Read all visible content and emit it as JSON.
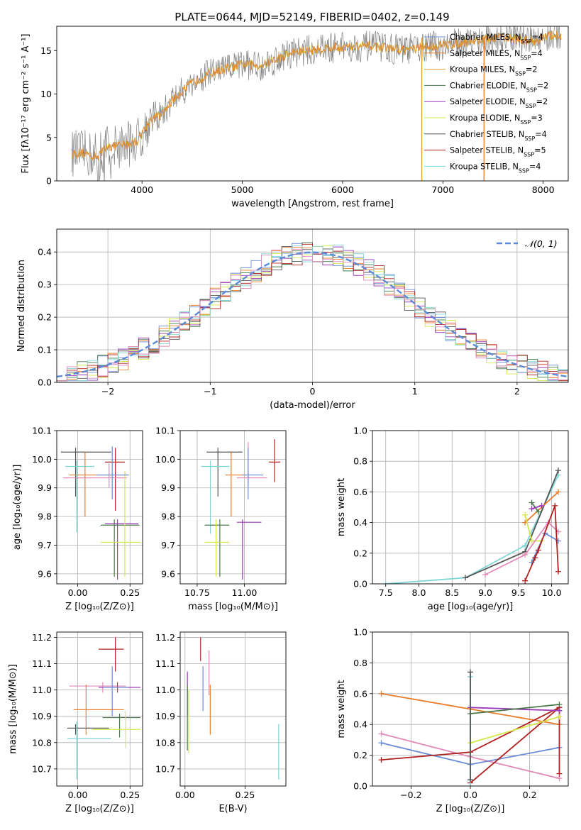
{
  "title": "PLATE=0644, MJD=52149, FIBERID=0402, z=0.149",
  "colors": {
    "Chabrier MILES": "#6a8bd6",
    "Salpeter MILES": "#e87c2a",
    "Kroupa MILES": "#e0a030",
    "Chabrier ELODIE": "#4a7a4a",
    "Salpeter ELODIE": "#9a3ab8",
    "Kroupa ELODIE": "#d4e84a",
    "Chabrier STELIB": "#555555",
    "Salpeter STELIB": "#b0201e",
    "Kroupa STELIB": "#7fd6d6",
    "Pink": "#e08ab8",
    "data": "#808080",
    "normal": "#5b8bd6"
  },
  "chart_data": [
    {
      "type": "line",
      "id": "spectrum",
      "xlabel": "wavelength [Angstrom, rest frame]",
      "ylabel": "Flux [fλ10⁻¹⁷ erg cm⁻² s⁻¹ A⁻¹]",
      "xlim": [
        3150,
        8250
      ],
      "ylim": [
        0,
        17.8
      ],
      "xticks": [
        4000,
        5000,
        6000,
        7000,
        8000
      ],
      "yticks": [
        0,
        5,
        10,
        15
      ],
      "continuum": [
        [
          3300,
          3.2
        ],
        [
          3450,
          3.1
        ],
        [
          3550,
          2.8
        ],
        [
          3650,
          3.9
        ],
        [
          3800,
          4.1
        ],
        [
          3950,
          4.6
        ],
        [
          4100,
          7.3
        ],
        [
          4200,
          7.6
        ],
        [
          4300,
          9.3
        ],
        [
          4500,
          11.3
        ],
        [
          4700,
          12.5
        ],
        [
          5000,
          13.4
        ],
        [
          5200,
          13.3
        ],
        [
          5500,
          14.8
        ],
        [
          5800,
          15.2
        ],
        [
          6000,
          15.4
        ],
        [
          6300,
          15.5
        ],
        [
          6600,
          15.1
        ],
        [
          7000,
          15.6
        ],
        [
          7300,
          16.1
        ],
        [
          7600,
          16.5
        ],
        [
          7900,
          16.1
        ],
        [
          8100,
          16.8
        ]
      ],
      "vertical_cuts": [
        6790,
        7410
      ],
      "legend": [
        {
          "label": "Chabrier MILES, N",
          "sub": "SSP",
          "tail": "=4"
        },
        {
          "label": "Salpeter MILES, N",
          "sub": "SSP",
          "tail": "=4"
        },
        {
          "label": "Kroupa MILES, N",
          "sub": "SSP",
          "tail": "=2"
        },
        {
          "label": "Chabrier ELODIE, N",
          "sub": "SSP",
          "tail": "=2"
        },
        {
          "label": "Salpeter ELODIE, N",
          "sub": "SSP",
          "tail": "=2"
        },
        {
          "label": "Kroupa ELODIE, N",
          "sub": "SSP",
          "tail": "=3"
        },
        {
          "label": "Chabrier STELIB, N",
          "sub": "SSP",
          "tail": "=4"
        },
        {
          "label": "Salpeter STELIB, N",
          "sub": "SSP",
          "tail": "=5"
        },
        {
          "label": "Kroupa STELIB, N",
          "sub": "SSP",
          "tail": "=4"
        }
      ]
    },
    {
      "type": "bar",
      "id": "residuals",
      "xlabel": "(data-model)/error",
      "ylabel": "Normed distribution",
      "xlim": [
        -2.5,
        2.5
      ],
      "ylim": [
        0,
        0.47
      ],
      "xticks": [
        -2,
        -1,
        0,
        1,
        2
      ],
      "yticks": [
        0.0,
        0.1,
        0.2,
        0.3,
        0.4
      ],
      "grid": true,
      "legend_label": "𝒩(0, 1)",
      "legend_position": "top-right",
      "bin_width": 0.1
    },
    {
      "type": "scatter",
      "id": "age-vs-z",
      "xlabel": "Z [log₁₀(Z/Z⊙)]",
      "ylabel": "age  [log₁₀(age/yr)]",
      "xlim": [
        -0.1,
        0.31
      ],
      "ylim": [
        9.565,
        10.1
      ],
      "xticks": [
        0.0,
        0.25
      ],
      "yticks": [
        9.6,
        9.7,
        9.8,
        9.9,
        10.0,
        10.1
      ],
      "grid": true,
      "points": [
        {
          "c": "Chabrier STELIB",
          "x": -0.01,
          "y": 10.025,
          "ex": [
            -0.08,
            0.16
          ],
          "ey": [
            9.87,
            10.04
          ]
        },
        {
          "c": "Salpeter MILES",
          "x": 0.035,
          "y": 9.945,
          "ex": [
            -0.04,
            0.24
          ],
          "ey": [
            9.8,
            10.025
          ]
        },
        {
          "c": "Kroupa STELIB",
          "x": -0.005,
          "y": 9.975,
          "ex": [
            -0.06,
            0.08
          ],
          "ey": [
            9.745,
            9.995
          ]
        },
        {
          "c": "Salpeter STELIB",
          "x": 0.18,
          "y": 9.99,
          "ex": [
            0.13,
            0.225
          ],
          "ey": [
            9.82,
            10.04
          ]
        },
        {
          "c": "Pink",
          "x": 0.15,
          "y": 9.935,
          "ex": [
            -0.07,
            0.235
          ],
          "ey": [
            9.9,
            9.985
          ]
        },
        {
          "c": "Salpeter ELODIE",
          "x": 0.19,
          "y": 9.775,
          "ex": [
            0.13,
            0.29
          ],
          "ey": [
            9.58,
            9.79
          ]
        },
        {
          "c": "Chabrier ELODIE",
          "x": 0.175,
          "y": 9.77,
          "ex": [
            0.11,
            0.295
          ],
          "ey": [
            9.59,
            9.79
          ]
        },
        {
          "c": "Kroupa ELODIE",
          "x": 0.225,
          "y": 9.71,
          "ex": [
            0.11,
            0.3
          ],
          "ey": [
            9.59,
            9.96
          ]
        },
        {
          "c": "Chabrier MILES",
          "x": 0.165,
          "y": 9.945,
          "ex": [
            0.09,
            0.245
          ],
          "ey": [
            9.86,
            10.045
          ]
        }
      ]
    },
    {
      "type": "scatter",
      "id": "age-vs-mass",
      "xlabel": "mass [log₁₀(M/M⊙)]",
      "ylabel": "",
      "xlim": [
        10.66,
        11.22
      ],
      "ylim": [
        9.565,
        10.1
      ],
      "xticks": [
        10.75,
        11.0
      ],
      "yticks": [
        9.6,
        9.7,
        9.8,
        9.9,
        10.0,
        10.1
      ],
      "grid": true,
      "points": [
        {
          "c": "Chabrier STELIB",
          "x": 10.86,
          "y": 10.025,
          "ex": [
            10.8,
            10.99
          ],
          "ey": [
            9.87,
            10.04
          ]
        },
        {
          "c": "Salpeter MILES",
          "x": 10.93,
          "y": 9.945,
          "ex": [
            10.9,
            11.01
          ],
          "ey": [
            9.8,
            10.025
          ]
        },
        {
          "c": "Kroupa STELIB",
          "x": 10.82,
          "y": 9.975,
          "ex": [
            10.77,
            10.92
          ],
          "ey": [
            9.74,
            9.995
          ]
        },
        {
          "c": "Salpeter STELIB",
          "x": 11.16,
          "y": 9.99,
          "ex": [
            11.13,
            11.19
          ],
          "ey": [
            9.92,
            10.07
          ]
        },
        {
          "c": "Pink",
          "x": 11.02,
          "y": 9.935,
          "ex": [
            10.96,
            11.12
          ],
          "ey": [
            9.91,
            10.06
          ]
        },
        {
          "c": "Salpeter ELODIE",
          "x": 10.99,
          "y": 9.78,
          "ex": [
            10.96,
            11.09
          ],
          "ey": [
            9.58,
            9.79
          ]
        },
        {
          "c": "Chabrier ELODIE",
          "x": 10.87,
          "y": 9.77,
          "ex": [
            10.79,
            10.92
          ],
          "ey": [
            9.59,
            9.79
          ]
        },
        {
          "c": "Kroupa ELODIE",
          "x": 10.85,
          "y": 9.71,
          "ex": [
            10.79,
            10.92
          ],
          "ey": [
            9.59,
            9.79
          ]
        },
        {
          "c": "Chabrier MILES",
          "x": 11.02,
          "y": 9.945,
          "ex": [
            10.99,
            11.1
          ],
          "ey": [
            9.86,
            10.04
          ]
        }
      ]
    },
    {
      "type": "line",
      "id": "massweight-vs-age",
      "xlabel": "age  [log₁₀(age/yr)]",
      "ylabel": "mass weight",
      "xlim": [
        7.3,
        10.25
      ],
      "ylim": [
        0,
        1.0
      ],
      "xticks": [
        7.5,
        8.0,
        8.5,
        9.0,
        9.5,
        10.0
      ],
      "yticks": [
        0.0,
        0.2,
        0.4,
        0.6,
        0.8,
        1.0
      ],
      "grid": true,
      "series": [
        {
          "c": "Kroupa STELIB",
          "x": [
            7.5,
            8.7,
            9.6,
            10.1
          ],
          "y": [
            0.0,
            0.04,
            0.25,
            0.71
          ]
        },
        {
          "c": "Chabrier STELIB",
          "x": [
            8.7,
            9.6,
            10.1
          ],
          "y": [
            0.04,
            0.21,
            0.74
          ]
        },
        {
          "c": "Salpeter MILES",
          "x": [
            9.6,
            10.1
          ],
          "y": [
            0.4,
            0.6
          ]
        },
        {
          "c": "Chabrier ELODIE",
          "x": [
            9.7,
            9.8
          ],
          "y": [
            0.53,
            0.47
          ]
        },
        {
          "c": "Salpeter ELODIE",
          "x": [
            9.7,
            9.85
          ],
          "y": [
            0.49,
            0.51
          ]
        },
        {
          "c": "Kroupa ELODIE",
          "x": [
            9.6,
            9.7,
            9.85
          ],
          "y": [
            0.45,
            0.28,
            0.28
          ]
        },
        {
          "c": "Chabrier MILES",
          "x": [
            9.7,
            9.9,
            10.1
          ],
          "y": [
            0.14,
            0.33,
            0.28
          ]
        },
        {
          "c": "Pink",
          "x": [
            9.0,
            9.6,
            9.95,
            10.1
          ],
          "y": [
            0.06,
            0.19,
            0.4,
            0.34
          ]
        },
        {
          "c": "Salpeter STELIB",
          "x": [
            9.6,
            9.75,
            9.8,
            10.05,
            10.1
          ],
          "y": [
            0.02,
            0.17,
            0.22,
            0.51,
            0.08
          ]
        }
      ]
    },
    {
      "type": "scatter",
      "id": "mass-vs-z",
      "xlabel": "Z [log₁₀(Z/Z⊙)]",
      "ylabel": "mass [log₁₀(M/M⊙)]",
      "xlim": [
        -0.1,
        0.31
      ],
      "ylim": [
        10.635,
        11.22
      ],
      "xticks": [
        0.0,
        0.25
      ],
      "yticks": [
        10.7,
        10.8,
        10.9,
        11.0,
        11.1,
        11.2
      ],
      "grid": true,
      "points": [
        {
          "c": "Salpeter STELIB",
          "x": 0.18,
          "y": 11.155,
          "ex": [
            0.1,
            0.22
          ],
          "ey": [
            11.07,
            11.2
          ]
        },
        {
          "c": "Pink",
          "x": 0.12,
          "y": 11.015,
          "ex": [
            -0.04,
            0.23
          ],
          "ey": [
            10.99,
            11.03
          ]
        },
        {
          "c": "Salpeter ELODIE",
          "x": 0.19,
          "y": 11.01,
          "ex": [
            0.1,
            0.3
          ],
          "ey": [
            10.99,
            11.03
          ]
        },
        {
          "c": "Chabrier MILES",
          "x": 0.165,
          "y": 11.01,
          "ex": [
            0.12,
            0.24
          ],
          "ey": [
            10.9,
            11.09
          ]
        },
        {
          "c": "Salpeter MILES",
          "x": 0.04,
          "y": 10.925,
          "ex": [
            -0.02,
            0.22
          ],
          "ey": [
            10.83,
            11.02
          ]
        },
        {
          "c": "Chabrier ELODIE",
          "x": 0.2,
          "y": 10.895,
          "ex": [
            0.12,
            0.3
          ],
          "ey": [
            10.82,
            10.91
          ]
        },
        {
          "c": "Kroupa ELODIE",
          "x": 0.23,
          "y": 10.85,
          "ex": [
            0.07,
            0.3
          ],
          "ey": [
            10.78,
            10.92
          ]
        },
        {
          "c": "Chabrier STELIB",
          "x": -0.01,
          "y": 10.855,
          "ex": [
            -0.05,
            0.15
          ],
          "ey": [
            10.83,
            10.87
          ]
        },
        {
          "c": "Kroupa STELIB",
          "x": -0.005,
          "y": 10.815,
          "ex": [
            -0.05,
            0.16
          ],
          "ey": [
            10.66,
            10.88
          ]
        }
      ]
    },
    {
      "type": "scatter",
      "id": "mass-vs-ebv",
      "xlabel": "E(B-V)",
      "ylabel": "",
      "xlim": [
        -0.02,
        0.42
      ],
      "ylim": [
        10.635,
        11.22
      ],
      "xticks": [
        0.0,
        0.25
      ],
      "yticks": [
        10.7,
        10.8,
        10.9,
        11.0,
        11.1,
        11.2
      ],
      "grid": true,
      "points": [
        {
          "c": "Salpeter STELIB",
          "x": 0.065,
          "y": 11.155,
          "ex": [
            0.065,
            0.065
          ],
          "ey": [
            11.11,
            11.2
          ]
        },
        {
          "c": "Pink",
          "x": 0.1,
          "y": 11.015,
          "ex": [
            0.1,
            0.1
          ],
          "ey": [
            10.98,
            11.15
          ]
        },
        {
          "c": "Salpeter ELODIE",
          "x": 0.01,
          "y": 11.01,
          "ex": [
            0.01,
            0.01
          ],
          "ey": [
            10.9,
            11.07
          ]
        },
        {
          "c": "Chabrier MILES",
          "x": 0.075,
          "y": 11.01,
          "ex": [
            0.075,
            0.075
          ],
          "ey": [
            10.92,
            11.09
          ]
        },
        {
          "c": "Salpeter MILES",
          "x": 0.105,
          "y": 10.925,
          "ex": [
            0.105,
            0.105
          ],
          "ey": [
            10.83,
            11.02
          ]
        },
        {
          "c": "Chabrier ELODIE",
          "x": 0.01,
          "y": 10.895,
          "ex": [
            0.01,
            0.01
          ],
          "ey": [
            10.77,
            11.02
          ]
        },
        {
          "c": "Kroupa ELODIE",
          "x": 0.015,
          "y": 10.85,
          "ex": [
            0.015,
            0.015
          ],
          "ey": [
            10.76,
            11.0
          ]
        },
        {
          "c": "Kroupa STELIB",
          "x": 0.39,
          "y": 10.815,
          "ex": [
            0.39,
            0.39
          ],
          "ey": [
            10.66,
            10.87
          ]
        }
      ]
    },
    {
      "type": "line",
      "id": "massweight-vs-z",
      "xlabel": "Z [log₁₀(Z/Z⊙)]",
      "ylabel": "mass weight",
      "xlim": [
        -0.33,
        0.33
      ],
      "ylim": [
        0,
        1.0
      ],
      "xticks": [
        -0.2,
        0.0,
        0.2
      ],
      "yticks": [
        0.0,
        0.2,
        0.4,
        0.6,
        0.8,
        1.0
      ],
      "grid": true,
      "series": [
        {
          "c": "Salpeter MILES",
          "x": [
            -0.3,
            0.0,
            0.3
          ],
          "y": [
            0.6,
            0.5,
            0.4
          ]
        },
        {
          "c": "Pink",
          "x": [
            -0.3,
            0.0,
            0.3
          ],
          "y": [
            0.34,
            0.19,
            0.05
          ]
        },
        {
          "c": "Chabrier MILES",
          "x": [
            -0.3,
            0.0,
            0.3
          ],
          "y": [
            0.28,
            0.14,
            0.25
          ]
        },
        {
          "c": "Salpeter STELIB",
          "x": [
            -0.3,
            0.0,
            0.3,
            0.3
          ],
          "y": [
            0.17,
            0.22,
            0.51,
            0.08
          ]
        },
        {
          "c": "Salpeter STELIB",
          "x": [
            0.0,
            0.3
          ],
          "y": [
            0.02,
            0.51
          ]
        },
        {
          "c": "Salpeter ELODIE",
          "x": [
            0.0,
            0.3
          ],
          "y": [
            0.51,
            0.49
          ]
        },
        {
          "c": "Chabrier ELODIE",
          "x": [
            0.0,
            0.3
          ],
          "y": [
            0.47,
            0.53
          ]
        },
        {
          "c": "Kroupa ELODIE",
          "x": [
            0.0,
            0.3
          ],
          "y": [
            0.28,
            0.45
          ]
        },
        {
          "c": "Kroupa STELIB",
          "x": [
            0.0,
            0.0,
            0.0
          ],
          "y": [
            0.0,
            0.71,
            0.04
          ]
        },
        {
          "c": "Chabrier STELIB",
          "x": [
            0.0,
            0.0
          ],
          "y": [
            0.04,
            0.74
          ]
        }
      ]
    }
  ]
}
